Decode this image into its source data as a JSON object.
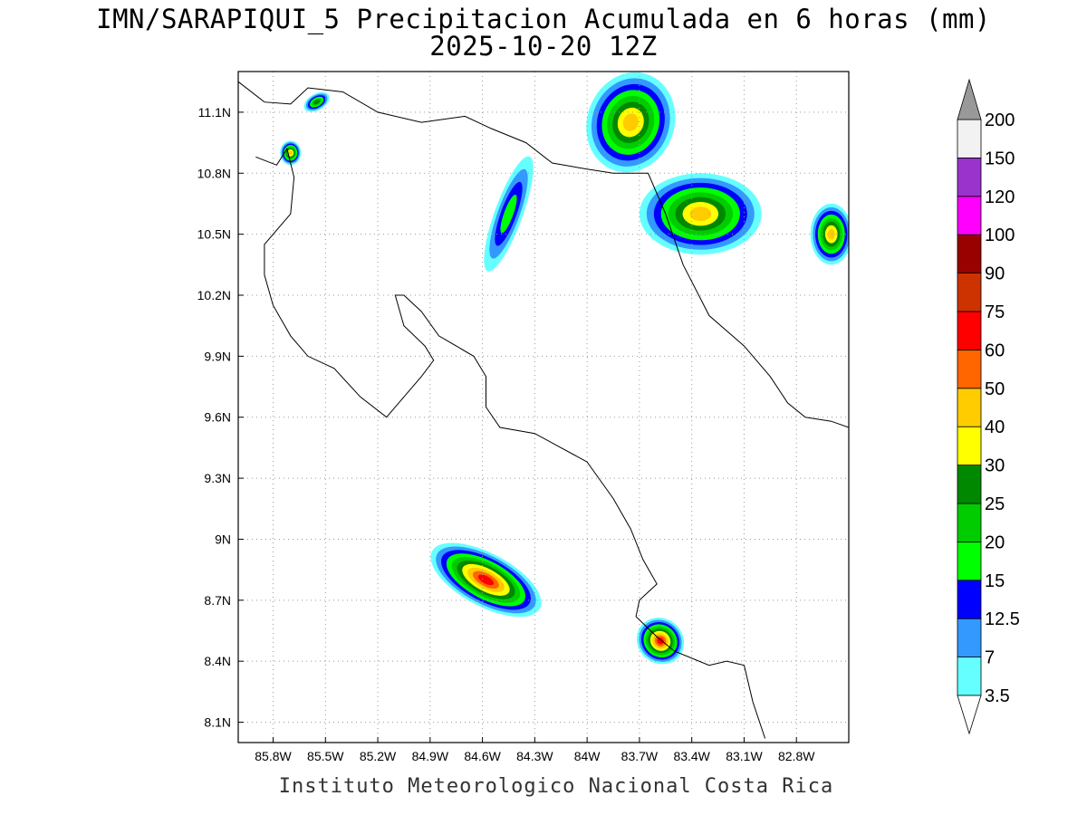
{
  "header": {
    "title": "IMN/SARAPIQUI_5 Precipitacion Acumulada en 6 horas (mm)",
    "subtitle": "2025-10-20 12Z"
  },
  "footer": {
    "credit": "Instituto Meteorologico Nacional Costa Rica"
  },
  "map": {
    "lon_range": [
      -86.0,
      -82.5
    ],
    "lat_range": [
      8.0,
      11.3
    ],
    "lon_ticks": [
      {
        "value": -85.8,
        "label": "85.8W"
      },
      {
        "value": -85.5,
        "label": "85.5W"
      },
      {
        "value": -85.2,
        "label": "85.2W"
      },
      {
        "value": -84.9,
        "label": "84.9W"
      },
      {
        "value": -84.6,
        "label": "84.6W"
      },
      {
        "value": -84.3,
        "label": "84.3W"
      },
      {
        "value": -84.0,
        "label": "84W"
      },
      {
        "value": -83.7,
        "label": "83.7W"
      },
      {
        "value": -83.4,
        "label": "83.4W"
      },
      {
        "value": -83.1,
        "label": "83.1W"
      },
      {
        "value": -82.8,
        "label": "82.8W"
      }
    ],
    "lat_ticks": [
      {
        "value": 11.1,
        "label": "11.1N"
      },
      {
        "value": 10.8,
        "label": "10.8N"
      },
      {
        "value": 10.5,
        "label": "10.5N"
      },
      {
        "value": 10.2,
        "label": "10.2N"
      },
      {
        "value": 9.9,
        "label": "9.9N"
      },
      {
        "value": 9.6,
        "label": "9.6N"
      },
      {
        "value": 9.3,
        "label": "9.3N"
      },
      {
        "value": 9.0,
        "label": "9N"
      },
      {
        "value": 8.7,
        "label": "8.7N"
      },
      {
        "value": 8.4,
        "label": "8.4N"
      },
      {
        "value": 8.1,
        "label": "8.1N"
      }
    ],
    "gridlines": true,
    "coastline": [
      [
        -86.0,
        11.25
      ],
      [
        -85.85,
        11.15
      ],
      [
        -85.7,
        11.14
      ],
      [
        -85.6,
        11.22
      ],
      [
        -85.4,
        11.2
      ],
      [
        -85.2,
        11.1
      ],
      [
        -84.95,
        11.05
      ],
      [
        -84.7,
        11.08
      ],
      [
        -84.55,
        11.02
      ],
      [
        -84.35,
        10.95
      ],
      [
        -84.2,
        10.85
      ],
      [
        -84.0,
        10.82
      ],
      [
        -83.85,
        10.8
      ],
      [
        -83.75,
        10.8
      ],
      [
        -83.65,
        10.8
      ],
      [
        -83.55,
        10.6
      ],
      [
        -83.45,
        10.35
      ],
      [
        -83.3,
        10.1
      ],
      [
        -83.1,
        9.95
      ],
      [
        -82.95,
        9.8
      ],
      [
        -82.85,
        9.67
      ],
      [
        -82.75,
        9.6
      ],
      [
        -82.6,
        9.58
      ],
      [
        -82.5,
        9.55
      ]
    ],
    "coastline_pacific": [
      [
        -85.9,
        10.88
      ],
      [
        -85.78,
        10.84
      ],
      [
        -85.72,
        10.92
      ],
      [
        -85.68,
        10.78
      ],
      [
        -85.7,
        10.6
      ],
      [
        -85.85,
        10.45
      ],
      [
        -85.85,
        10.3
      ],
      [
        -85.8,
        10.15
      ],
      [
        -85.7,
        10.0
      ],
      [
        -85.6,
        9.9
      ],
      [
        -85.45,
        9.84
      ],
      [
        -85.3,
        9.7
      ],
      [
        -85.15,
        9.6
      ],
      [
        -85.05,
        9.7
      ],
      [
        -84.95,
        9.8
      ],
      [
        -84.88,
        9.88
      ],
      [
        -84.93,
        9.95
      ],
      [
        -85.05,
        10.05
      ],
      [
        -85.1,
        10.2
      ],
      [
        -85.05,
        10.2
      ],
      [
        -84.95,
        10.12
      ],
      [
        -84.85,
        10.0
      ],
      [
        -84.75,
        9.95
      ],
      [
        -84.65,
        9.9
      ],
      [
        -84.58,
        9.8
      ],
      [
        -84.58,
        9.65
      ],
      [
        -84.5,
        9.55
      ],
      [
        -84.3,
        9.52
      ],
      [
        -84.15,
        9.45
      ],
      [
        -84.0,
        9.38
      ],
      [
        -83.85,
        9.2
      ],
      [
        -83.75,
        9.05
      ],
      [
        -83.68,
        8.9
      ],
      [
        -83.6,
        8.78
      ],
      [
        -83.7,
        8.7
      ],
      [
        -83.72,
        8.62
      ],
      [
        -83.6,
        8.52
      ],
      [
        -83.5,
        8.45
      ],
      [
        -83.3,
        8.38
      ],
      [
        -83.2,
        8.4
      ],
      [
        -83.1,
        8.38
      ],
      [
        -83.05,
        8.2
      ],
      [
        -82.98,
        8.02
      ]
    ]
  },
  "colorbar": {
    "levels": [
      "3.5",
      "7",
      "12.5",
      "15",
      "20",
      "25",
      "30",
      "40",
      "50",
      "60",
      "75",
      "90",
      "100",
      "120",
      "150",
      "200"
    ],
    "colors": [
      "#66ffff",
      "#3399ff",
      "#0000ff",
      "#00ff00",
      "#00cc00",
      "#008800",
      "#ffff00",
      "#ffcc00",
      "#ff6600",
      "#ff0000",
      "#cc3300",
      "#990000",
      "#ff00ff",
      "#9933cc",
      "#f2f2f2",
      "#999999"
    ]
  },
  "precip_cells": [
    {
      "lon": -84.58,
      "lat": 8.8,
      "rx": 0.35,
      "ry": 0.13,
      "rot": 28,
      "peak": 60
    },
    {
      "lon": -83.58,
      "lat": 8.5,
      "rx": 0.14,
      "ry": 0.11,
      "rot": 40,
      "peak": 60
    },
    {
      "lon": -83.35,
      "lat": 10.6,
      "rx": 0.35,
      "ry": 0.2,
      "rot": 0,
      "peak": 40
    },
    {
      "lon": -83.75,
      "lat": 11.05,
      "rx": 0.25,
      "ry": 0.25,
      "rot": 20,
      "peak": 40
    },
    {
      "lon": -84.45,
      "lat": 10.6,
      "rx": 0.08,
      "ry": 0.3,
      "rot": 20,
      "peak": 15
    },
    {
      "lon": -85.7,
      "lat": 10.9,
      "rx": 0.06,
      "ry": 0.06,
      "rot": 0,
      "peak": 40
    },
    {
      "lon": -85.55,
      "lat": 11.15,
      "rx": 0.08,
      "ry": 0.04,
      "rot": -30,
      "peak": 25
    },
    {
      "lon": -82.6,
      "lat": 10.5,
      "rx": 0.12,
      "ry": 0.15,
      "rot": 0,
      "peak": 40
    }
  ]
}
